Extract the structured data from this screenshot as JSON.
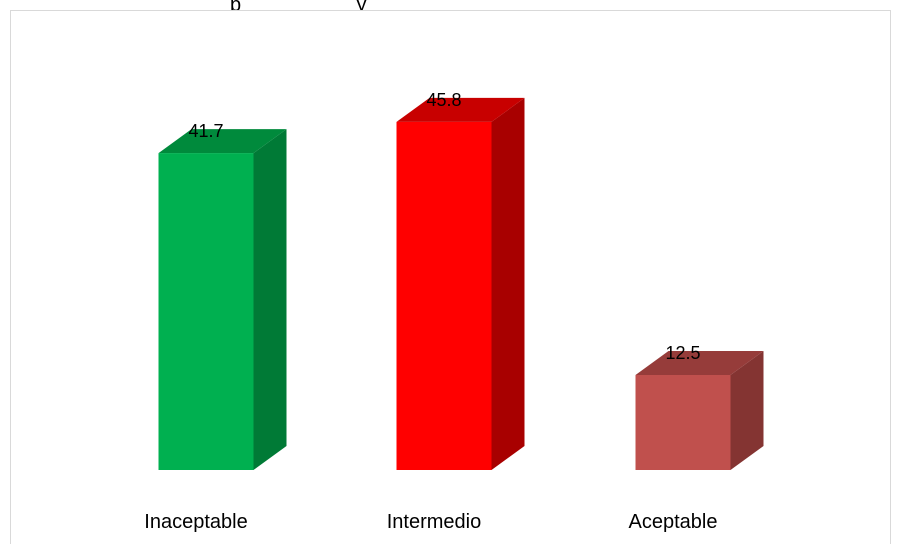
{
  "chart_data": {
    "type": "bar",
    "title": "",
    "title_fragment": "p                    y",
    "categories": [
      "Inaceptable",
      "Intermedio",
      "Aceptable"
    ],
    "values": [
      41.7,
      45.8,
      12.5
    ],
    "value_labels": [
      "41.7",
      "45.8",
      "12.5"
    ],
    "xlabel": "",
    "ylabel": "",
    "ylim": [
      0,
      50
    ],
    "grid": false,
    "legend": "none",
    "bar_style": "3d",
    "colors": {
      "Inaceptable": {
        "front": "#00b050",
        "side": "#007a36",
        "top": "#008a3c"
      },
      "Intermedio": {
        "front": "#ff0000",
        "side": "#a80000",
        "top": "#c80000"
      },
      "Aceptable": {
        "front": "#c0504d",
        "side": "#843432",
        "top": "#963c3a"
      }
    }
  }
}
